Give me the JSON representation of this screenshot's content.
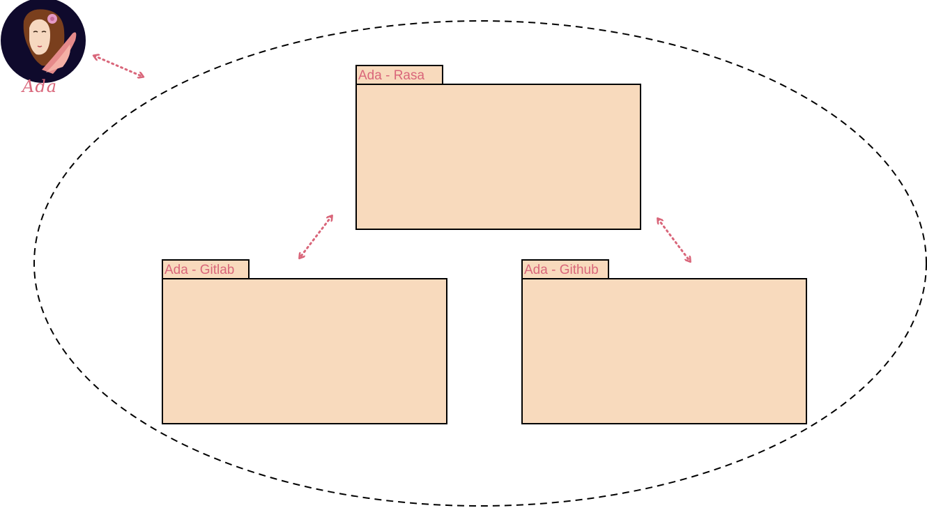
{
  "logo": {
    "text": "Ada"
  },
  "packages": {
    "rasa": {
      "label": "Ada - Rasa"
    },
    "gitlab": {
      "label": "Ada - Gitlab"
    },
    "github": {
      "label": "Ada - Github"
    }
  },
  "colors": {
    "package_fill": "#f8dabd",
    "label_text": "#d9667a",
    "arrow": "#d9667a",
    "logo_bg": "#0f0a2c",
    "boundary": "#000000"
  },
  "icons": {
    "avatar": "ada-avatar-icon",
    "connector": "double-headed-dotted-arrow"
  }
}
